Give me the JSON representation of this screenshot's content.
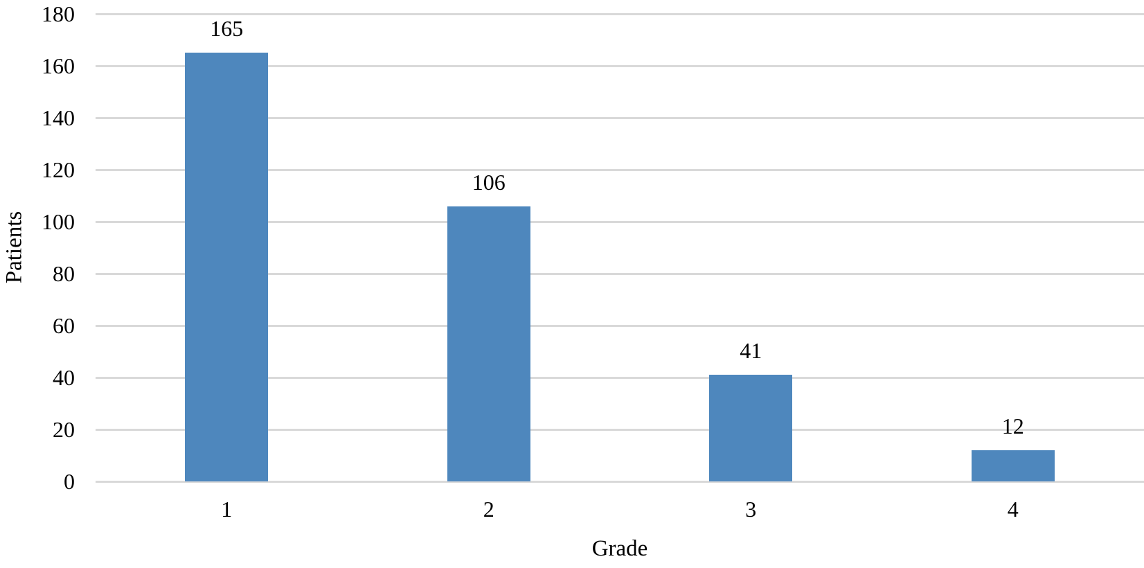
{
  "chart_data": {
    "type": "bar",
    "categories": [
      "1",
      "2",
      "3",
      "4"
    ],
    "values": [
      165,
      106,
      41,
      12
    ],
    "data_labels_visible": true,
    "title": "",
    "xlabel": "Grade",
    "ylabel": "Patients",
    "ylim": [
      0,
      180
    ],
    "ytick_step": 20,
    "yticks": [
      0,
      20,
      40,
      60,
      80,
      100,
      120,
      140,
      160,
      180
    ],
    "grid": true,
    "legend": false,
    "bar_color": "#4E87BD",
    "gridline_color": "#D9D9D9",
    "axis_line_color": "#D9D9D9",
    "text_color": "#000000",
    "background_color": "#FFFFFF"
  }
}
